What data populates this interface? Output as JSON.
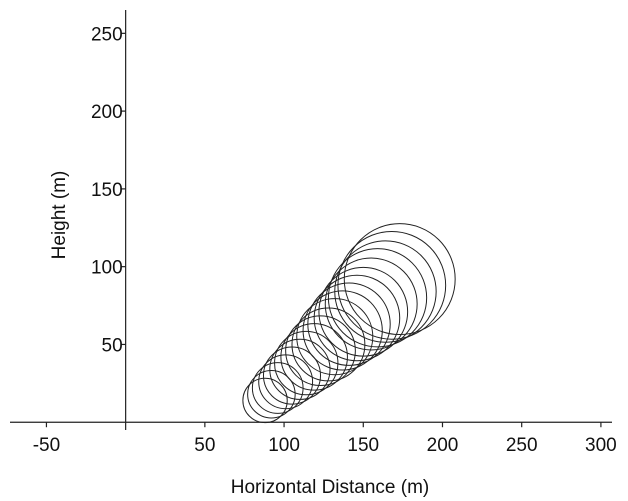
{
  "chart_data": {
    "type": "circles",
    "xlabel": "Horizontal Distance (m)",
    "ylabel": "Height (m)",
    "x": [
      88,
      92,
      96,
      101,
      105,
      110,
      114,
      119,
      123,
      128,
      132,
      137,
      141,
      146,
      150,
      155,
      159,
      164,
      168,
      173
    ],
    "y": [
      14,
      18,
      22,
      26,
      30,
      34,
      38,
      42,
      46,
      50,
      55,
      59,
      63,
      67,
      71,
      76,
      80,
      84,
      88,
      92
    ],
    "r": [
      14,
      15,
      16,
      17,
      18,
      19,
      20,
      21,
      22,
      23,
      24,
      25,
      26,
      27,
      28,
      29,
      31,
      32,
      34,
      35
    ],
    "color": "#222",
    "xlim": [
      -73,
      307
    ],
    "ylim": [
      -5,
      265
    ],
    "xticks": [
      -50,
      50,
      100,
      150,
      200,
      250,
      300
    ],
    "yticks": [
      50,
      100,
      150,
      200,
      250
    ]
  }
}
